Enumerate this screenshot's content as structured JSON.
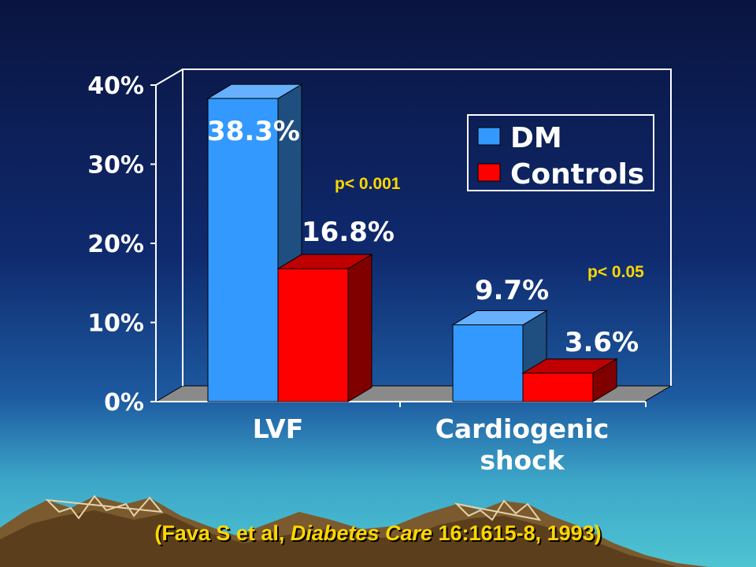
{
  "chart_data": {
    "type": "bar",
    "categories": [
      "LVF",
      "Cardiogenic shock"
    ],
    "series": [
      {
        "name": "DM",
        "values": [
          38.3,
          9.7
        ],
        "labels": [
          "38.3%",
          "9.7%"
        ]
      },
      {
        "name": "Controls",
        "values": [
          16.8,
          3.6
        ],
        "labels": [
          "16.8%",
          "3.6%"
        ]
      }
    ],
    "ylim": [
      0,
      40
    ],
    "yticks": [
      "0%",
      "10%",
      "20%",
      "30%",
      "40%"
    ],
    "legend_position": "top-right",
    "style": "3d",
    "colors": {
      "DM": "#3399ff",
      "Controls": "#ff0000"
    },
    "annotations": [
      "p< 0.001",
      "p< 0.05"
    ]
  },
  "category_lines": [
    [
      "LVF"
    ],
    [
      "Cardiogenic",
      "shock"
    ]
  ],
  "citation": {
    "prefix": "(Fava S et al, ",
    "journal": "Diabetes Care",
    "suffix": " 16:1615-8, 1993)"
  }
}
